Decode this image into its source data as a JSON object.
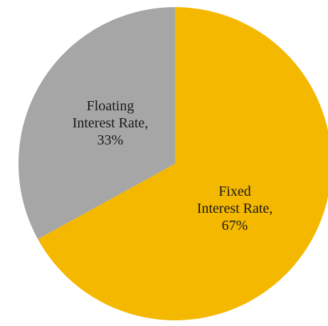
{
  "chart_data": {
    "type": "pie",
    "title": "",
    "slices": [
      {
        "label": "Fixed Interest Rate",
        "value": 67,
        "value_label": "67%",
        "color": "#F5B800",
        "label_lines": [
          "Fixed",
          "Interest Rate,",
          "67%"
        ]
      },
      {
        "label": "Floating Interest Rate",
        "value": 33,
        "value_label": "33%",
        "color": "#A6A6A6",
        "label_lines": [
          "Floating",
          "Interest Rate,",
          "33%"
        ]
      }
    ],
    "start_angle_deg": 0,
    "direction": "clockwise",
    "legend": "none"
  }
}
